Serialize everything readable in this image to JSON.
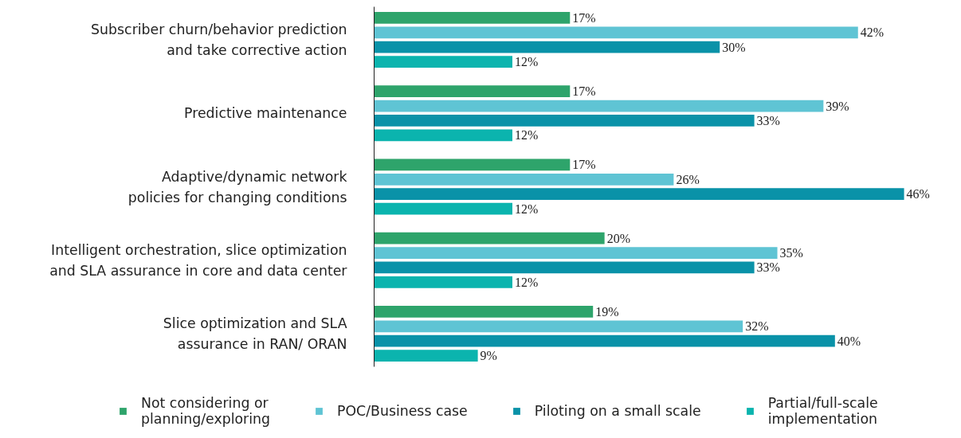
{
  "chart_data": {
    "type": "bar",
    "orientation": "horizontal",
    "categories": [
      "Subscriber churn/behavior prediction and take corrective action",
      "Predictive maintenance",
      "Adaptive/dynamic network policies for changing conditions",
      "Intelligent orchestration, slice optimization and SLA assurance in core and data center",
      "Slice optimization and SLA assurance in RAN/ ORAN"
    ],
    "series": [
      {
        "name": "Not considering or planning/exploring",
        "color": "#2ea46b",
        "values": [
          17,
          17,
          17,
          20,
          19
        ],
        "value_labels": [
          "17%",
          "17%",
          "17%",
          "20%",
          "19%"
        ]
      },
      {
        "name": "POC/Business case",
        "color": "#5fc4d4",
        "values": [
          42,
          39,
          26,
          35,
          32
        ],
        "value_labels": [
          "42%",
          "39%",
          "26%",
          "35%",
          "32%"
        ]
      },
      {
        "name": "Piloting on a small scale",
        "color": "#0a92a8",
        "values": [
          30,
          33,
          46,
          33,
          40
        ],
        "value_labels": [
          "30%",
          "33%",
          "46%",
          "33%",
          "40%"
        ]
      },
      {
        "name": "Partial/full-scale implementation",
        "color": "#0bb4ae",
        "values": [
          12,
          12,
          12,
          12,
          9
        ],
        "value_labels": [
          "12%",
          "12%",
          "12%",
          "12%",
          "9%"
        ]
      }
    ],
    "tick_labels": "y",
    "grid": false,
    "legend": "bottom"
  }
}
